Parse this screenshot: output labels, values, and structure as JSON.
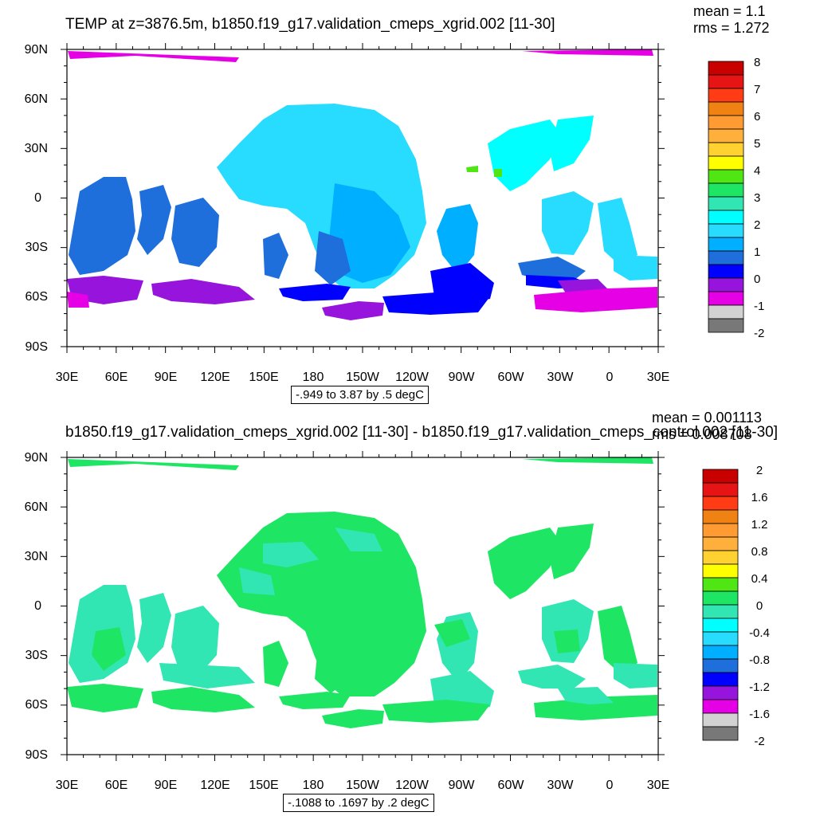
{
  "chart_data": [
    {
      "type": "heatmap",
      "title": "TEMP at z=3876.5m, b1850.f19_g17.validation_cmeps_xgrid.002 [11-30]",
      "stats": {
        "mean": "mean = 1.1",
        "rms": "rms = 1.272"
      },
      "contour_info": "-.949 to 3.87 by .5 degC",
      "x_ticks": [
        "30E",
        "60E",
        "90E",
        "120E",
        "150E",
        "180",
        "150W",
        "120W",
        "90W",
        "60W",
        "30W",
        "0",
        "30E"
      ],
      "y_ticks": [
        "90N",
        "60N",
        "30N",
        "0",
        "30S",
        "60S",
        "90S"
      ],
      "colorbar": {
        "labels": [
          "8",
          "7",
          "6",
          "5",
          "4",
          "3",
          "2",
          "1",
          "0",
          "-1",
          "-2"
        ],
        "colors": [
          "#c80000",
          "#e61414",
          "#ff3c14",
          "#f08214",
          "#ff9b32",
          "#ffaf3c",
          "#ffd232",
          "#ffff00",
          "#50e614",
          "#1ee664",
          "#32e6b4",
          "#00ffff",
          "#28dcff",
          "#00afff",
          "#1e6edc",
          "#0000ff",
          "#9614dc",
          "#e600e6",
          "#d2d2d2",
          "#787878"
        ]
      }
    },
    {
      "type": "heatmap",
      "title": "b1850.f19_g17.validation_cmeps_xgrid.002 [11-30] - b1850.f19_g17.validation_cmeps_control.002 [11-30]",
      "stats": {
        "mean": "mean = 0.001113",
        "rms": "rms = 0.008708"
      },
      "contour_info": "-.1088 to .1697 by .2 degC",
      "x_ticks": [
        "30E",
        "60E",
        "90E",
        "120E",
        "150E",
        "180",
        "150W",
        "120W",
        "90W",
        "60W",
        "30W",
        "0",
        "30E"
      ],
      "y_ticks": [
        "90N",
        "60N",
        "30N",
        "0",
        "30S",
        "60S",
        "90S"
      ],
      "colorbar": {
        "labels": [
          "2",
          "1.6",
          "1.2",
          "0.8",
          "0.4",
          "0",
          "-0.4",
          "-0.8",
          "-1.2",
          "-1.6",
          "-2"
        ],
        "colors": [
          "#c80000",
          "#e61414",
          "#ff3c14",
          "#f08214",
          "#ff9b32",
          "#ffaf3c",
          "#ffd232",
          "#ffff00",
          "#50e614",
          "#1ee664",
          "#32e6b4",
          "#00ffff",
          "#28dcff",
          "#00afff",
          "#1e6edc",
          "#0000ff",
          "#9614dc",
          "#e600e6",
          "#d2d2d2",
          "#787878"
        ]
      }
    }
  ]
}
